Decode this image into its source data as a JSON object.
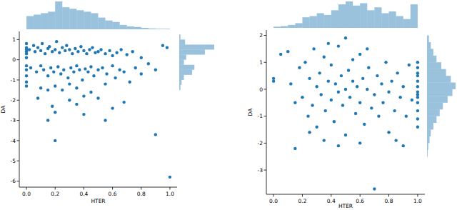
{
  "chart_data": [
    {
      "type": "scatter",
      "x_label": "HTER",
      "y_label": "DA",
      "color": "#1f77b4",
      "xlim": [
        -0.05,
        1.05
      ],
      "ylim": [
        -6.3,
        1.4
      ],
      "xticks": [
        {
          "value": 0,
          "label": "0.0"
        },
        {
          "value": 0.2,
          "label": "0.2"
        },
        {
          "value": 0.4,
          "label": "0.4"
        },
        {
          "value": 0.6,
          "label": "0.6"
        },
        {
          "value": 0.8,
          "label": "0.8"
        },
        {
          "value": 1,
          "label": "1.0"
        }
      ],
      "yticks": [
        -6,
        -5,
        -4,
        -3,
        -2,
        -1,
        0,
        1
      ],
      "x": [
        0,
        0,
        0,
        0,
        0,
        0,
        0,
        0,
        0,
        0,
        0,
        0.02,
        0.05,
        0.06,
        0.08,
        0.1,
        0.11,
        0.13,
        0.15,
        0.16,
        0.18,
        0.2,
        0.21,
        0.23,
        0.25,
        0.27,
        0.28,
        0.3,
        0.32,
        0.34,
        0.36,
        0.38,
        0.4,
        0.42,
        0.44,
        0.46,
        0.48,
        0.5,
        0.52,
        0.55,
        0.58,
        0.6,
        0.63,
        0.66,
        0.7,
        0.74,
        0.8,
        0.95,
        0.98,
        0.03,
        0.07,
        0.1,
        0.12,
        0.15,
        0.17,
        0.19,
        0.22,
        0.24,
        0.26,
        0.29,
        0.31,
        0.33,
        0.35,
        0.37,
        0.39,
        0.41,
        0.43,
        0.45,
        0.47,
        0.5,
        0.53,
        0.56,
        0.6,
        0.62,
        0.65,
        0.68,
        0.72,
        0.76,
        0.8,
        0.85,
        0.9,
        0.2,
        0.25,
        0.35,
        0.45,
        0.3,
        0.15,
        0.55,
        0.1,
        0.4,
        0.18,
        0.2,
        0.15,
        0.35,
        0.4,
        0.5,
        0.55,
        0.6,
        0.68,
        0.2,
        0.9,
        1.0,
        0.08,
        0.3
      ],
      "values": [
        0.8,
        0.6,
        0.5,
        0.4,
        0.3,
        0.1,
        -0.3,
        -0.5,
        -0.8,
        -1.1,
        -1.3,
        0.5,
        0.7,
        0.4,
        0.6,
        0.45,
        0.8,
        0.3,
        0.55,
        0.65,
        0.4,
        0.5,
        0.9,
        0.35,
        0.6,
        0.45,
        0.7,
        0.5,
        0.3,
        0.55,
        0.4,
        0.65,
        0.45,
        0.3,
        0.5,
        0.6,
        0.35,
        0.4,
        0.5,
        0.3,
        0.45,
        0.2,
        0.35,
        0.5,
        0.25,
        0.4,
        0.1,
        0.7,
        0.6,
        -0.4,
        -0.6,
        -0.3,
        -0.5,
        -0.8,
        -0.4,
        -0.6,
        -0.35,
        -0.7,
        -0.5,
        -0.9,
        -0.4,
        -0.6,
        -0.3,
        -0.5,
        -1.0,
        -0.45,
        -0.6,
        -0.35,
        -0.8,
        -0.5,
        -0.4,
        -0.7,
        -0.3,
        -0.9,
        -0.5,
        -0.6,
        -1.1,
        -0.4,
        -0.7,
        -0.2,
        -0.5,
        -1.3,
        -1.5,
        -1.4,
        -1.6,
        -1.2,
        -1.5,
        -1.2,
        -1.4,
        -1.8,
        -2.3,
        -2.6,
        -3.0,
        -2.2,
        -2.7,
        -1.9,
        -3.0,
        -2.4,
        -2.1,
        -4.0,
        -3.7,
        -5.8,
        -1.9,
        -2.0
      ],
      "x_histogram": {
        "bins": [
          0,
          0.05,
          0.1,
          0.15,
          0.2,
          0.25,
          0.3,
          0.35,
          0.4,
          0.45,
          0.5,
          0.55,
          0.6,
          0.65,
          0.7,
          0.75,
          0.8,
          0.85,
          0.9,
          0.95,
          1.0
        ],
        "counts": [
          45,
          50,
          55,
          60,
          95,
          75,
          70,
          65,
          60,
          55,
          40,
          30,
          25,
          15,
          10,
          8,
          5,
          3,
          2,
          2
        ]
      },
      "y_histogram": {
        "bins": [
          -1.5,
          -1.25,
          -1,
          -0.75,
          -0.5,
          -0.25,
          0,
          0.25,
          0.5,
          0.75,
          1,
          1.25
        ],
        "counts": [
          5,
          10,
          20,
          55,
          65,
          20,
          30,
          110,
          150,
          25,
          5
        ]
      }
    },
    {
      "type": "scatter",
      "x_label": "HTER",
      "y_label": "DA",
      "color": "#1f77b4",
      "xlim": [
        -0.05,
        1.05
      ],
      "ylim": [
        -3.9,
        2.2
      ],
      "xticks": [
        {
          "value": 0,
          "label": "0.0"
        },
        {
          "value": 0.2,
          "label": "0.2"
        },
        {
          "value": 0.4,
          "label": "0.4"
        },
        {
          "value": 0.6,
          "label": "0.6"
        },
        {
          "value": 0.8,
          "label": "0.8"
        },
        {
          "value": 1,
          "label": "1.0"
        }
      ],
      "yticks": [
        -3,
        -2,
        -1,
        0,
        1,
        2
      ],
      "x": [
        1,
        1,
        1,
        1,
        1,
        1,
        1,
        1,
        1,
        1,
        1,
        1,
        1,
        0,
        0,
        0.05,
        0.1,
        0.12,
        0.15,
        0.15,
        0.18,
        0.2,
        0.22,
        0.24,
        0.25,
        0.27,
        0.28,
        0.3,
        0.3,
        0.32,
        0.33,
        0.35,
        0.36,
        0.38,
        0.4,
        0.4,
        0.42,
        0.43,
        0.45,
        0.45,
        0.47,
        0.48,
        0.5,
        0.5,
        0.52,
        0.53,
        0.55,
        0.55,
        0.57,
        0.58,
        0.6,
        0.6,
        0.62,
        0.63,
        0.65,
        0.66,
        0.68,
        0.7,
        0.7,
        0.72,
        0.73,
        0.75,
        0.76,
        0.78,
        0.8,
        0.8,
        0.82,
        0.84,
        0.86,
        0.88,
        0.9,
        0.9,
        0.92,
        0.94,
        0.96,
        0.35,
        0.45,
        0.25,
        0.6,
        0.85,
        0.5,
        0.38,
        0.65
      ],
      "values": [
        1.0,
        0.8,
        0.5,
        0.3,
        0.1,
        -0.1,
        -0.3,
        -0.5,
        -0.8,
        -1.1,
        -1.4,
        0.6,
        -0.2,
        0.4,
        0.3,
        1.3,
        1.4,
        0.2,
        -0.5,
        -2.2,
        0.8,
        -0.3,
        1.0,
        -1.0,
        0.4,
        -0.6,
        1.5,
        0.1,
        -1.4,
        0.6,
        -0.2,
        1.2,
        -0.8,
        0.3,
        -0.4,
        0.9,
        -1.2,
        0.2,
        -0.1,
        1.6,
        0.5,
        -0.6,
        0.0,
        -1.7,
        0.7,
        -0.3,
        0.3,
        1.1,
        -0.9,
        0.1,
        -0.5,
        1.3,
        0.4,
        -1.3,
        0.0,
        0.8,
        -0.7,
        -0.2,
        -3.7,
        0.5,
        -1.0,
        0.2,
        -0.5,
        1.0,
        -0.1,
        -1.6,
        0.3,
        -0.8,
        0.6,
        -0.3,
        -2.1,
        0.1,
        -1.0,
        0.9,
        -0.4,
        -1.9,
        -2.1,
        -1.6,
        -2.0,
        -1.9,
        1.9,
        1.7,
        1.5
      ],
      "x_histogram": {
        "bins": [
          0,
          0.05,
          0.1,
          0.15,
          0.2,
          0.25,
          0.3,
          0.35,
          0.4,
          0.45,
          0.5,
          0.55,
          0.6,
          0.65,
          0.7,
          0.75,
          0.8,
          0.85,
          0.9,
          0.95,
          1.0
        ],
        "counts": [
          2,
          3,
          5,
          8,
          18,
          20,
          25,
          22,
          30,
          40,
          45,
          38,
          42,
          30,
          35,
          25,
          28,
          20,
          15,
          40
        ]
      },
      "y_histogram": {
        "bins": [
          -2.5,
          -2.25,
          -2,
          -1.75,
          -1.5,
          -1.25,
          -1,
          -0.75,
          -0.5,
          -0.25,
          0,
          0.25,
          0.5,
          0.75,
          1,
          1.25,
          1.5,
          1.75,
          2
        ],
        "counts": [
          2,
          4,
          8,
          12,
          20,
          30,
          40,
          50,
          65,
          80,
          90,
          75,
          60,
          45,
          30,
          20,
          12,
          6
        ]
      }
    }
  ]
}
